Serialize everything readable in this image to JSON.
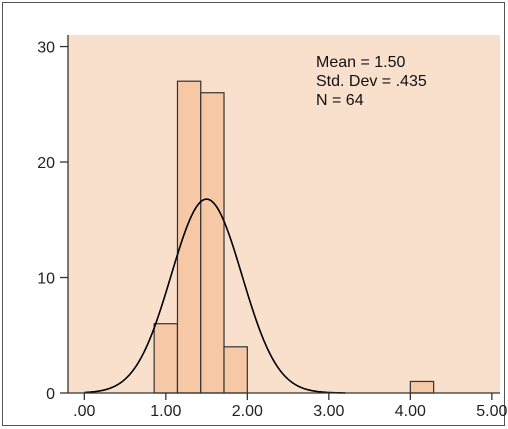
{
  "chart_data": {
    "type": "bar",
    "subtype": "histogram",
    "title": "",
    "xlabel": "",
    "ylabel": "",
    "xlim": [
      -0.2,
      5.1
    ],
    "ylim": [
      0,
      31
    ],
    "x_ticks": [
      0,
      1,
      2,
      3,
      4,
      5
    ],
    "x_tick_labels": [
      ".00",
      "1.00",
      "2.00",
      "3.00",
      "4.00",
      "5.00"
    ],
    "y_ticks": [
      0,
      10,
      20,
      30
    ],
    "y_tick_labels": [
      "0",
      "10",
      "20",
      "30"
    ],
    "bin_width": 0.286,
    "bins": [
      {
        "start": 0.857,
        "end": 1.143,
        "count": 6
      },
      {
        "start": 1.143,
        "end": 1.429,
        "count": 27
      },
      {
        "start": 1.429,
        "end": 1.714,
        "count": 26
      },
      {
        "start": 1.714,
        "end": 2.0,
        "count": 4
      },
      {
        "start": 4.0,
        "end": 4.286,
        "count": 1
      }
    ],
    "normal_curve": {
      "mean": 1.5,
      "std": 0.435,
      "n": 64
    },
    "annotations": [
      "Mean = 1.50",
      "Std. Dev = .435",
      "N = 64"
    ],
    "colors": {
      "plot_background": "#f8e0cd",
      "bar_fill": "#f6c8a6",
      "bar_stroke": "#333333",
      "curve": "#000000",
      "axis": "#333333"
    },
    "grid": false,
    "legend": "none"
  }
}
